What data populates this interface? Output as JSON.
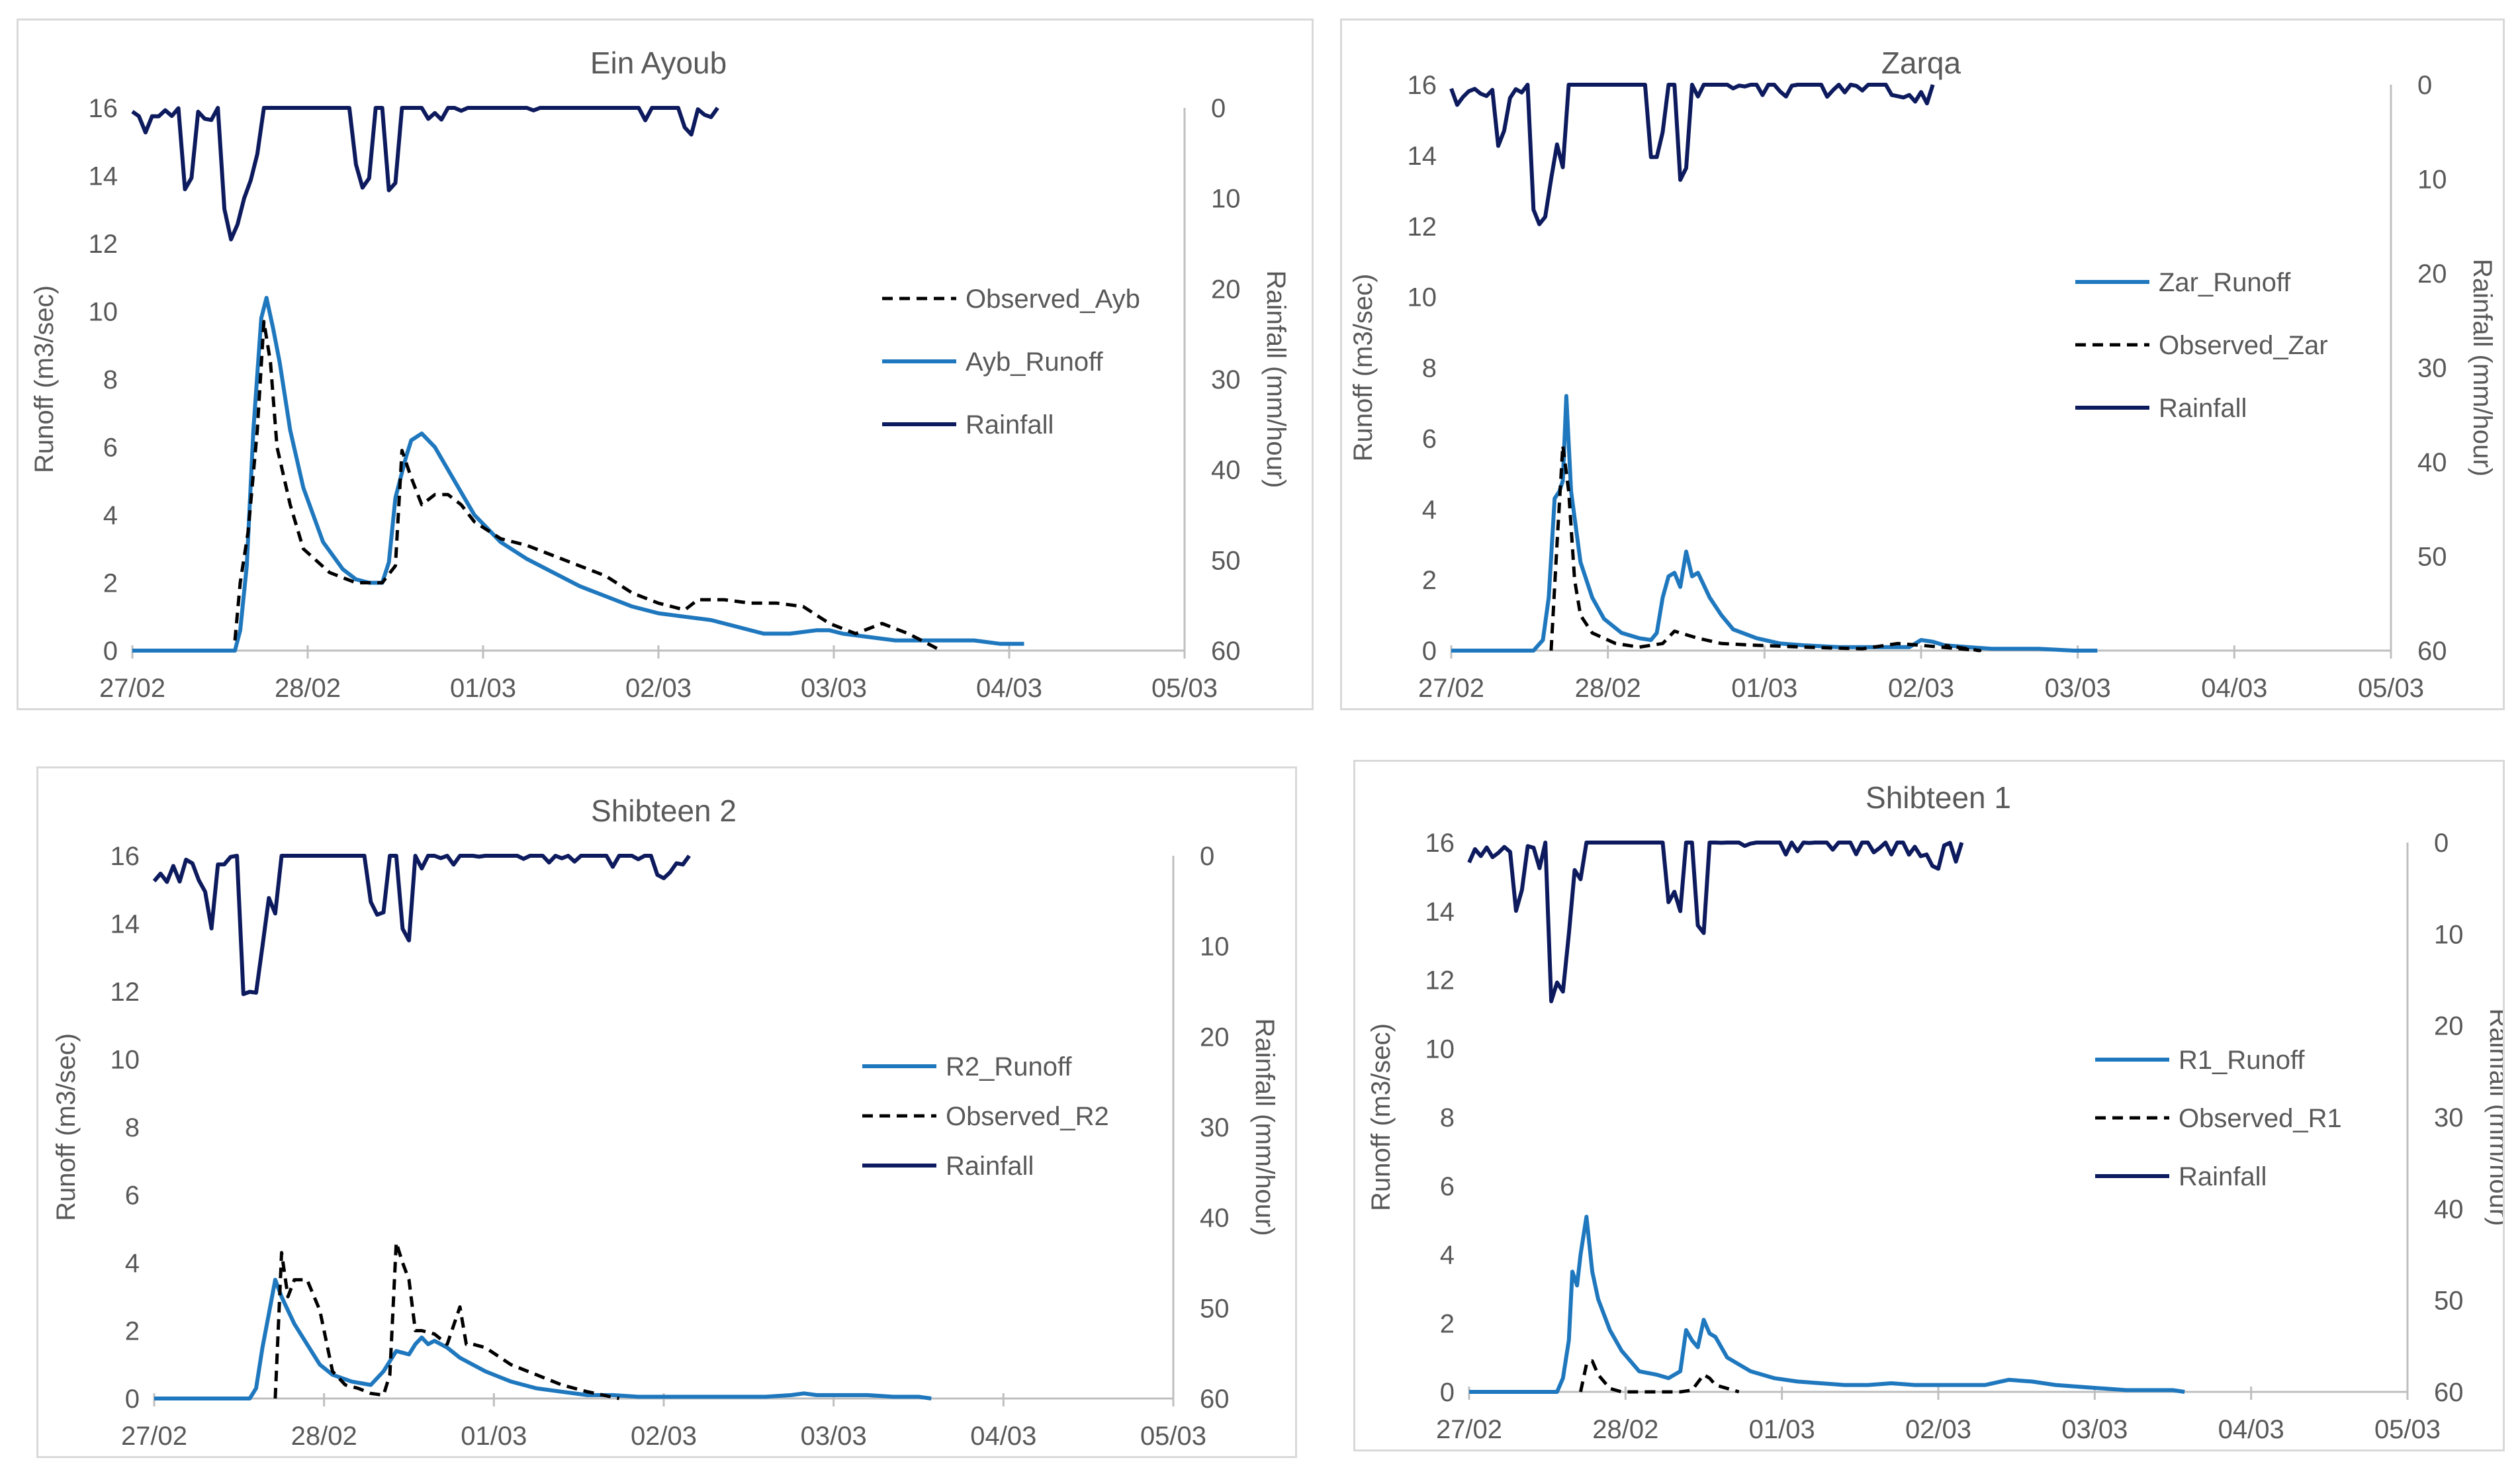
{
  "colors": {
    "rainfall": "#0d1b5e",
    "runoff": "#1f78be",
    "observed": "#000000",
    "axis": "#bfbfbf",
    "text": "#595959"
  },
  "chart_data": [
    {
      "id": "ayb",
      "type": "line",
      "title": "Ein Ayoub",
      "ylabel": "Runoff (m3/sec)",
      "y2label": "Rainfall (mm/hour)",
      "ylim": [
        0,
        16
      ],
      "yticks": [
        "0",
        "2",
        "4",
        "6",
        "8",
        "10",
        "12",
        "14",
        "16"
      ],
      "y2lim": [
        0,
        60
      ],
      "y2ticks": [
        "0",
        "10",
        "20",
        "30",
        "40",
        "50",
        "60"
      ],
      "xlim": [
        0,
        8
      ],
      "xticks": [
        "27/02",
        "28/02",
        "01/03",
        "02/03",
        "03/03",
        "04/03",
        "05/03"
      ],
      "legend": [
        "Observed_Ayb",
        "Ayb_Runoff",
        "Rainfall"
      ],
      "legend_styles": [
        "observed",
        "runoff",
        "rainfall"
      ],
      "series": [
        {
          "name": "Ayb_Runoff",
          "style": "runoff",
          "x": [
            0,
            0.78,
            0.82,
            0.87,
            0.92,
            0.98,
            1.02,
            1.07,
            1.12,
            1.2,
            1.3,
            1.45,
            1.6,
            1.7,
            1.8,
            1.9,
            1.95,
            2.0,
            2.08,
            2.12,
            2.2,
            2.3,
            2.45,
            2.6,
            2.8,
            3.0,
            3.2,
            3.4,
            3.6,
            3.8,
            4.0,
            4.2,
            4.4,
            4.6,
            4.8,
            5.0,
            5.2,
            5.3,
            5.4,
            5.6,
            5.8,
            6.0,
            6.2,
            6.4,
            6.6,
            6.78
          ],
          "y": [
            0,
            0,
            0.6,
            2.5,
            6.5,
            9.8,
            10.4,
            9.5,
            8.5,
            6.5,
            4.8,
            3.2,
            2.4,
            2.1,
            2.0,
            2.0,
            2.6,
            4.5,
            5.7,
            6.2,
            6.4,
            6.0,
            5.0,
            4.0,
            3.2,
            2.7,
            2.3,
            1.9,
            1.6,
            1.3,
            1.1,
            1.0,
            0.9,
            0.7,
            0.5,
            0.5,
            0.6,
            0.6,
            0.5,
            0.4,
            0.3,
            0.3,
            0.3,
            0.3,
            0.2,
            0.2
          ]
        },
        {
          "name": "Observed_Ayb",
          "style": "observed",
          "x": [
            0.78,
            0.82,
            0.88,
            0.95,
            1.0,
            1.05,
            1.1,
            1.2,
            1.3,
            1.5,
            1.7,
            1.8,
            1.9,
            2.0,
            2.05,
            2.12,
            2.2,
            2.3,
            2.4,
            2.5,
            2.6,
            2.8,
            3.0,
            3.2,
            3.4,
            3.6,
            3.8,
            4.0,
            4.2,
            4.3,
            4.5,
            4.7,
            4.9,
            5.1,
            5.3,
            5.5,
            5.7,
            5.9,
            6.15
          ],
          "y": [
            0.3,
            2.0,
            3.5,
            6.5,
            9.7,
            8.5,
            6.0,
            4.3,
            3.0,
            2.3,
            2.0,
            2.0,
            2.0,
            2.5,
            5.9,
            5.1,
            4.3,
            4.6,
            4.6,
            4.3,
            3.8,
            3.3,
            3.1,
            2.8,
            2.5,
            2.2,
            1.7,
            1.4,
            1.2,
            1.5,
            1.5,
            1.4,
            1.4,
            1.3,
            0.8,
            0.5,
            0.8,
            0.5,
            0.0
          ]
        },
        {
          "name": "Rainfall",
          "style": "rainfall",
          "x_end": 4.45,
          "seed": 1,
          "peaks": []
        }
      ]
    },
    {
      "id": "zar",
      "type": "line",
      "title": "Zarqa",
      "ylabel": "Runoff (m3/sec)",
      "y2label": "Rainfall (mm/hour)",
      "ylim": [
        0,
        16
      ],
      "yticks": [
        "0",
        "2",
        "4",
        "6",
        "8",
        "10",
        "12",
        "14",
        "16"
      ],
      "y2lim": [
        0,
        60
      ],
      "y2ticks": [
        "0",
        "10",
        "20",
        "30",
        "40",
        "50",
        "60"
      ],
      "xlim": [
        0,
        8
      ],
      "xticks": [
        "27/02",
        "28/02",
        "01/03",
        "02/03",
        "03/03",
        "04/03",
        "05/03"
      ],
      "legend": [
        "Zar_Runoff",
        "Observed_Zar",
        "Rainfall"
      ],
      "legend_styles": [
        "runoff",
        "observed",
        "rainfall"
      ],
      "series": [
        {
          "name": "Zar_Runoff",
          "style": "runoff",
          "x": [
            0,
            0.7,
            0.78,
            0.83,
            0.88,
            0.92,
            0.95,
            0.98,
            1.02,
            1.1,
            1.2,
            1.3,
            1.45,
            1.6,
            1.7,
            1.75,
            1.8,
            1.85,
            1.9,
            1.95,
            2.0,
            2.05,
            2.1,
            2.2,
            2.3,
            2.4,
            2.6,
            2.8,
            3.0,
            3.3,
            3.6,
            3.9,
            4.0,
            4.1,
            4.2,
            4.4,
            4.6,
            4.8,
            5.0,
            5.3,
            5.5
          ],
          "y": [
            0,
            0,
            0.3,
            1.5,
            4.3,
            4.5,
            4.8,
            7.2,
            4.5,
            2.5,
            1.5,
            0.9,
            0.5,
            0.35,
            0.3,
            0.5,
            1.5,
            2.1,
            2.2,
            1.8,
            2.8,
            2.1,
            2.2,
            1.5,
            1.0,
            0.6,
            0.35,
            0.2,
            0.15,
            0.1,
            0.1,
            0.1,
            0.3,
            0.25,
            0.15,
            0.1,
            0.05,
            0.05,
            0.05,
            0.0,
            0.0
          ]
        },
        {
          "name": "Observed_Zar",
          "style": "observed",
          "x": [
            0.85,
            0.9,
            0.95,
            1.0,
            1.05,
            1.1,
            1.2,
            1.4,
            1.6,
            1.8,
            1.9,
            2.0,
            2.1,
            2.3,
            2.6,
            3.0,
            3.5,
            3.8,
            4.0,
            4.5,
            4.2
          ],
          "y": [
            0,
            3.0,
            5.8,
            4.5,
            2.0,
            1.0,
            0.5,
            0.2,
            0.1,
            0.2,
            0.55,
            0.45,
            0.35,
            0.2,
            0.15,
            0.1,
            0.05,
            0.2,
            0.15,
            0.0,
            0.15
          ]
        },
        {
          "name": "Rainfall",
          "style": "rainfall",
          "x_end": 4.1,
          "seed": 2,
          "peaks": []
        }
      ]
    },
    {
      "id": "r2",
      "type": "line",
      "title": "Shibteen 2",
      "ylabel": "Runoff (m3/sec)",
      "y2label": "Rainfall (mm/hour)",
      "ylim": [
        0,
        16
      ],
      "yticks": [
        "0",
        "2",
        "4",
        "6",
        "8",
        "10",
        "12",
        "14",
        "16"
      ],
      "y2lim": [
        0,
        60
      ],
      "y2ticks": [
        "0",
        "10",
        "20",
        "30",
        "40",
        "50",
        "60"
      ],
      "xlim": [
        0,
        8
      ],
      "xticks": [
        "27/02",
        "28/02",
        "01/03",
        "02/03",
        "03/03",
        "04/03",
        "05/03"
      ],
      "legend": [
        "R2_Runoff",
        "Observed_R2",
        "Rainfall"
      ],
      "legend_styles": [
        "runoff",
        "observed",
        "rainfall"
      ],
      "series": [
        {
          "name": "R2_Runoff",
          "style": "runoff",
          "x": [
            0,
            0.75,
            0.8,
            0.85,
            0.9,
            0.95,
            1.0,
            1.05,
            1.1,
            1.2,
            1.3,
            1.4,
            1.55,
            1.7,
            1.8,
            1.9,
            2.0,
            2.05,
            2.1,
            2.15,
            2.2,
            2.3,
            2.4,
            2.6,
            2.8,
            3.0,
            3.2,
            3.4,
            3.6,
            3.8,
            4.0,
            4.2,
            4.4,
            4.6,
            4.8,
            5.0,
            5.1,
            5.2,
            5.4,
            5.6,
            5.8,
            6.0,
            6.1
          ],
          "y": [
            0,
            0,
            0.3,
            1.5,
            2.5,
            3.5,
            3.0,
            2.6,
            2.2,
            1.6,
            1.0,
            0.7,
            0.5,
            0.4,
            0.8,
            1.4,
            1.3,
            1.6,
            1.8,
            1.6,
            1.7,
            1.5,
            1.2,
            0.8,
            0.5,
            0.3,
            0.2,
            0.1,
            0.1,
            0.05,
            0.05,
            0.05,
            0.05,
            0.05,
            0.05,
            0.1,
            0.15,
            0.1,
            0.1,
            0.1,
            0.05,
            0.05,
            0.0
          ]
        },
        {
          "name": "Observed_R2",
          "style": "observed",
          "x": [
            0.95,
            1.0,
            1.05,
            1.1,
            1.2,
            1.3,
            1.4,
            1.5,
            1.6,
            1.7,
            1.8,
            1.85,
            1.9,
            1.95,
            2.0,
            2.05,
            2.1,
            2.2,
            2.3,
            2.4,
            2.45,
            2.5,
            2.6,
            2.8,
            3.0,
            3.2,
            3.4,
            3.65
          ],
          "y": [
            0,
            4.3,
            3.0,
            3.5,
            3.5,
            2.6,
            0.8,
            0.4,
            0.3,
            0.15,
            0.1,
            0.7,
            4.6,
            4.0,
            3.5,
            2.0,
            2.0,
            1.9,
            1.6,
            2.7,
            1.6,
            1.6,
            1.5,
            1.0,
            0.7,
            0.4,
            0.2,
            0.0
          ]
        },
        {
          "name": "Rainfall",
          "style": "rainfall",
          "x_end": 4.2,
          "seed": 3,
          "peaks": []
        }
      ]
    },
    {
      "id": "r1",
      "type": "line",
      "title": "Shibteen 1",
      "ylabel": "Runoff (m3/sec)",
      "y2label": "Rainfall (mm/hour)",
      "ylim": [
        0,
        16
      ],
      "yticks": [
        "0",
        "2",
        "4",
        "6",
        "8",
        "10",
        "12",
        "14",
        "16"
      ],
      "y2lim": [
        0,
        60
      ],
      "y2ticks": [
        "0",
        "10",
        "20",
        "30",
        "40",
        "50",
        "60"
      ],
      "xlim": [
        0,
        8
      ],
      "xticks": [
        "27/02",
        "28/02",
        "01/03",
        "02/03",
        "03/03",
        "04/03",
        "05/03"
      ],
      "legend": [
        "R1_Runoff",
        "Observed_R1",
        "Rainfall"
      ],
      "legend_styles": [
        "runoff",
        "observed",
        "rainfall"
      ],
      "series": [
        {
          "name": "R1_Runoff",
          "style": "runoff",
          "x": [
            0,
            0.75,
            0.8,
            0.85,
            0.88,
            0.92,
            0.95,
            1.0,
            1.05,
            1.1,
            1.2,
            1.3,
            1.45,
            1.6,
            1.7,
            1.8,
            1.85,
            1.9,
            1.95,
            2.0,
            2.05,
            2.1,
            2.2,
            2.4,
            2.6,
            2.8,
            3.0,
            3.2,
            3.4,
            3.6,
            3.8,
            4.0,
            4.2,
            4.4,
            4.6,
            4.8,
            5.0,
            5.2,
            5.4,
            5.6,
            5.8,
            6.0,
            6.1
          ],
          "y": [
            0,
            0,
            0.4,
            1.5,
            3.5,
            3.1,
            4.0,
            5.1,
            3.5,
            2.7,
            1.8,
            1.2,
            0.6,
            0.5,
            0.4,
            0.6,
            1.8,
            1.5,
            1.3,
            2.1,
            1.7,
            1.6,
            1.0,
            0.6,
            0.4,
            0.3,
            0.25,
            0.2,
            0.2,
            0.25,
            0.2,
            0.2,
            0.2,
            0.2,
            0.35,
            0.3,
            0.2,
            0.15,
            0.1,
            0.05,
            0.05,
            0.05,
            0.0
          ]
        },
        {
          "name": "Observed_R1",
          "style": "observed",
          "x": [
            0.95,
            1.0,
            1.05,
            1.1,
            1.2,
            1.3,
            1.5,
            1.7,
            1.8,
            1.9,
            2.0,
            2.05,
            2.1,
            2.2,
            2.3
          ],
          "y": [
            0,
            0.8,
            0.9,
            0.5,
            0.1,
            0.0,
            0.0,
            0.0,
            0.0,
            0.05,
            0.5,
            0.4,
            0.2,
            0.1,
            0.0
          ]
        },
        {
          "name": "Rainfall",
          "style": "rainfall",
          "x_end": 4.2,
          "seed": 4,
          "peaks": []
        }
      ]
    }
  ]
}
